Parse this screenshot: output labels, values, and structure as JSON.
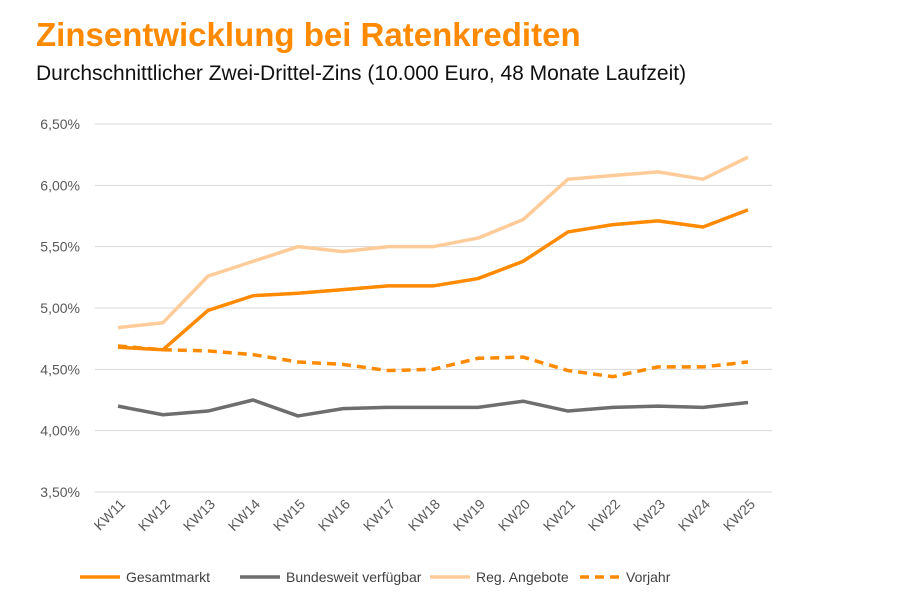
{
  "chart_data": {
    "type": "line",
    "title": "Zinsentwicklung bei Ratenkrediten",
    "subtitle": "Durchschnittlicher Zwei-Drittel-Zins (10.000 Euro, 48 Monate Laufzeit)",
    "categories": [
      "KW11",
      "KW12",
      "KW13",
      "KW14",
      "KW15",
      "KW16",
      "KW17",
      "KW18",
      "KW19",
      "KW20",
      "KW21",
      "KW22",
      "KW23",
      "KW24",
      "KW25"
    ],
    "ylim": [
      3.5,
      6.5
    ],
    "yticks": [
      3.5,
      4.0,
      4.5,
      5.0,
      5.5,
      6.0,
      6.5
    ],
    "ytick_labels": [
      "3,50%",
      "4,00%",
      "4,50%",
      "5,00%",
      "5,50%",
      "6,00%",
      "6,50%"
    ],
    "grid": true,
    "legend_position": "bottom",
    "series": [
      {
        "name": "Gesamtmarkt",
        "color": "#FF8A00",
        "dash": false,
        "values": [
          4.68,
          4.66,
          4.98,
          5.1,
          5.12,
          5.15,
          5.18,
          5.18,
          5.24,
          5.38,
          5.62,
          5.68,
          5.71,
          5.66,
          5.8
        ]
      },
      {
        "name": "Bundesweit verfügbar",
        "color": "#6E6E6E",
        "dash": false,
        "values": [
          4.2,
          4.13,
          4.16,
          4.25,
          4.12,
          4.18,
          4.19,
          4.19,
          4.19,
          4.24,
          4.16,
          4.19,
          4.2,
          4.19,
          4.23
        ]
      },
      {
        "name": "Reg. Angebote",
        "color": "#FFCC99",
        "dash": false,
        "values": [
          4.84,
          4.88,
          5.26,
          5.38,
          5.5,
          5.46,
          5.5,
          5.5,
          5.57,
          5.72,
          6.05,
          6.08,
          6.11,
          6.05,
          6.23
        ]
      },
      {
        "name": "Vorjahr",
        "color": "#FF8A00",
        "dash": true,
        "values": [
          4.69,
          4.66,
          4.65,
          4.62,
          4.56,
          4.54,
          4.49,
          4.5,
          4.59,
          4.6,
          4.49,
          4.44,
          4.52,
          4.52,
          4.56
        ]
      }
    ]
  }
}
